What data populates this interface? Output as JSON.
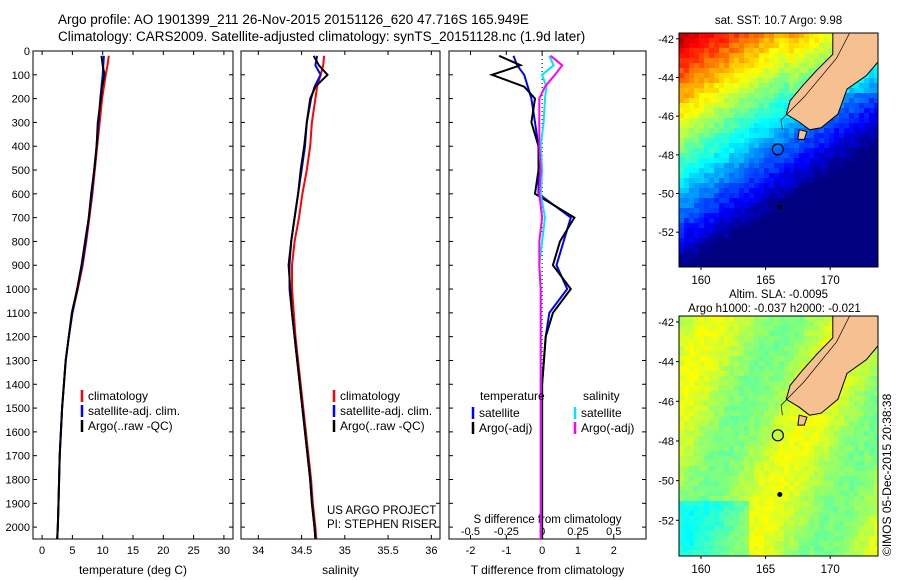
{
  "header": {
    "line1": "Argo profile: AO 1901399_211 26-Nov-2015 20151126_620 47.716S 165.949E",
    "line2": "Climatology: CARS2009. Satellite-adjusted climatology: synTS_20151128.nc (1.9d later)"
  },
  "footer_vertical": "©IMOS 05-Dec-2015 20:38:38",
  "colors": {
    "climatology": "#ff0000",
    "satellite": "#0000ff",
    "argo": "#000000",
    "sal_satellite": "#00e5ff",
    "sal_argo": "#ff00ff"
  },
  "depth_axis": {
    "ticks": [
      0,
      100,
      200,
      300,
      400,
      500,
      600,
      700,
      800,
      900,
      1000,
      1100,
      1200,
      1300,
      1400,
      1500,
      1600,
      1700,
      1800,
      1900,
      2000
    ],
    "range": [
      0,
      2050
    ]
  },
  "chart_data": [
    {
      "type": "line",
      "xlabel": "temperature (deg C)",
      "xlim": [
        -1.5,
        31.5
      ],
      "xticks": [
        0,
        5,
        10,
        15,
        20,
        25,
        30
      ],
      "yaxis": "depth (dbar), inverted",
      "legend": {
        "placement": "lower-center",
        "entries": [
          "climatology",
          "satellite-adj. clim.",
          "Argo(..raw -QC)"
        ]
      },
      "series": [
        {
          "name": "climatology",
          "color": "red",
          "depth": [
            20,
            60,
            100,
            150,
            200,
            300,
            400,
            500,
            600,
            700,
            800,
            900,
            1000,
            1100,
            1200,
            1300,
            1400,
            1500,
            1600,
            1700,
            1800,
            1900,
            2000,
            2050
          ],
          "values": [
            11.0,
            10.8,
            10.5,
            10.2,
            9.9,
            9.5,
            9.1,
            8.7,
            8.3,
            7.8,
            7.3,
            6.7,
            5.9,
            5.0,
            4.4,
            3.9,
            3.6,
            3.3,
            3.1,
            2.9,
            2.8,
            2.7,
            2.6,
            2.5
          ]
        },
        {
          "name": "satellite-adj. clim.",
          "color": "blue",
          "depth": [
            20,
            60,
            100,
            150,
            200,
            300,
            400,
            500,
            600,
            700,
            800,
            900,
            1000,
            1100,
            1200,
            1300,
            1400,
            1500,
            1600,
            1700,
            1800,
            1900,
            2000,
            2050
          ],
          "values": [
            10.2,
            10.1,
            10.0,
            9.8,
            9.6,
            9.3,
            9.0,
            8.6,
            8.2,
            7.7,
            7.2,
            6.6,
            5.8,
            5.0,
            4.4,
            3.9,
            3.6,
            3.3,
            3.1,
            2.9,
            2.8,
            2.7,
            2.6,
            2.5
          ]
        },
        {
          "name": "Argo(..raw -QC)",
          "color": "black",
          "depth": [
            20,
            60,
            100,
            150,
            200,
            300,
            400,
            500,
            600,
            700,
            800,
            900,
            1000,
            1100,
            1200,
            1300,
            1400,
            1500,
            1600,
            1700,
            1800,
            1900,
            2000,
            2050
          ],
          "values": [
            9.8,
            10.0,
            10.3,
            9.9,
            9.7,
            9.2,
            9.0,
            8.6,
            8.1,
            7.7,
            7.1,
            6.5,
            5.8,
            4.9,
            4.4,
            3.9,
            3.6,
            3.3,
            3.1,
            2.9,
            2.8,
            2.7,
            2.6,
            2.5
          ]
        }
      ]
    },
    {
      "type": "line",
      "xlabel": "salinity",
      "xlim": [
        33.8,
        36.1
      ],
      "xticks": [
        34,
        34.5,
        35,
        35.5,
        36
      ],
      "xticklabels": [
        "34",
        "34.5",
        "35",
        "35.5",
        "36"
      ],
      "legend": {
        "placement": "lower-right",
        "entries": [
          "climatology",
          "satellite-adj. clim.",
          "Argo(..raw -QC)"
        ]
      },
      "annotation": [
        "US ARGO PROJECT",
        "PI: STEPHEN RISER"
      ],
      "series": [
        {
          "name": "climatology",
          "color": "red",
          "depth": [
            20,
            60,
            100,
            150,
            200,
            300,
            400,
            500,
            600,
            700,
            800,
            900,
            1000,
            1100,
            1200,
            1300,
            1400,
            1500,
            1600,
            1700,
            1800,
            1900,
            2000,
            2050
          ],
          "values": [
            34.76,
            34.75,
            34.72,
            34.68,
            34.66,
            34.62,
            34.6,
            34.56,
            34.51,
            34.47,
            34.42,
            34.39,
            34.39,
            34.41,
            34.43,
            34.46,
            34.49,
            34.52,
            34.55,
            34.58,
            34.61,
            34.63,
            34.66,
            34.67
          ]
        },
        {
          "name": "satellite-adj. clim.",
          "color": "blue",
          "depth": [
            20,
            60,
            100,
            150,
            200,
            300,
            400,
            500,
            600,
            700,
            800,
            900,
            1000,
            1100,
            1200,
            1300,
            1400,
            1500,
            1600,
            1700,
            1800,
            1900,
            2000,
            2050
          ],
          "values": [
            34.68,
            34.66,
            34.72,
            34.65,
            34.61,
            34.56,
            34.54,
            34.5,
            34.46,
            34.42,
            34.38,
            34.36,
            34.36,
            34.39,
            34.42,
            34.45,
            34.48,
            34.51,
            34.54,
            34.57,
            34.6,
            34.62,
            34.65,
            34.66
          ]
        },
        {
          "name": "Argo(..raw -QC)",
          "color": "black",
          "depth": [
            20,
            60,
            100,
            150,
            200,
            300,
            400,
            500,
            600,
            700,
            800,
            900,
            1000,
            1100,
            1200,
            1300,
            1400,
            1500,
            1600,
            1700,
            1800,
            1900,
            2000,
            2050
          ],
          "values": [
            34.64,
            34.7,
            34.8,
            34.66,
            34.6,
            34.56,
            34.53,
            34.49,
            34.46,
            34.42,
            34.38,
            34.35,
            34.37,
            34.39,
            34.42,
            34.45,
            34.48,
            34.51,
            34.54,
            34.57,
            34.6,
            34.62,
            34.65,
            34.66
          ]
        }
      ]
    },
    {
      "type": "line",
      "xlabel": "T difference from climatology",
      "xlabel_top": "S difference from climatology",
      "xlim": [
        -2.6,
        2.9
      ],
      "xticks": [
        -2,
        -1,
        0,
        1,
        2
      ],
      "top_ticks": [
        -0.5,
        -0.25,
        0,
        0.25,
        0.5
      ],
      "top_ticklabels": [
        "-0.5",
        "-0.25",
        "0",
        "0.25",
        "0.5"
      ],
      "legend": {
        "placement": "lower-center",
        "groups": [
          {
            "title": "temperature",
            "entries": [
              "satellite",
              "Argo(-adj)"
            ]
          },
          {
            "title": "salinity",
            "entries": [
              "satellite",
              "Argo(-adj)"
            ]
          }
        ]
      },
      "series": [
        {
          "name": "temperature satellite",
          "color": "blue",
          "depth": [
            20,
            60,
            100,
            150,
            200,
            300,
            400,
            500,
            600,
            700,
            800,
            900,
            1000,
            1100,
            1200,
            1300,
            1400,
            1500,
            1600,
            1700,
            1800,
            1900,
            2000,
            2050
          ],
          "values": [
            -0.8,
            -0.7,
            -0.5,
            -0.4,
            -0.3,
            -0.2,
            -0.1,
            -0.1,
            -0.1,
            0.8,
            0.6,
            0.4,
            0.7,
            0.2,
            0.1,
            0.05,
            0.0,
            0.0,
            0.0,
            0.0,
            0.0,
            0.0,
            0.0,
            0.0
          ]
        },
        {
          "name": "temperature Argo(-adj)",
          "color": "black",
          "depth": [
            20,
            60,
            100,
            150,
            200,
            300,
            400,
            500,
            600,
            700,
            800,
            900,
            1000,
            1100,
            1200,
            1300,
            1400,
            1500,
            1600,
            1700,
            1800,
            1900,
            2000,
            2050
          ],
          "values": [
            -1.2,
            -0.6,
            -1.4,
            -0.5,
            -0.2,
            -0.3,
            -0.1,
            -0.1,
            -0.2,
            0.9,
            0.5,
            0.3,
            0.8,
            0.3,
            0.1,
            0.05,
            0.0,
            0.0,
            0.0,
            0.0,
            0.0,
            0.0,
            0.0,
            0.0
          ]
        },
        {
          "name": "salinity satellite",
          "color": "cyan",
          "depth": [
            20,
            60,
            100,
            150,
            200,
            300,
            400,
            500,
            600,
            700,
            800,
            900,
            1000,
            1100,
            1200,
            1300,
            1400,
            1500,
            1600,
            1700,
            1800,
            1900,
            2000,
            2050
          ],
          "values": [
            0.05,
            0.08,
            0.0,
            0.03,
            0.02,
            0.01,
            -0.01,
            0.0,
            -0.01,
            0.02,
            0.0,
            -0.02,
            -0.01,
            -0.01,
            -0.01,
            -0.01,
            -0.01,
            -0.01,
            -0.01,
            -0.01,
            -0.01,
            -0.01,
            -0.01,
            -0.01
          ]
        },
        {
          "name": "salinity Argo(-adj)",
          "color": "magenta",
          "depth": [
            20,
            60,
            100,
            150,
            200,
            300,
            400,
            500,
            600,
            700,
            800,
            900,
            1000,
            1100,
            1200,
            1300,
            1400,
            1500,
            1600,
            1700,
            1800,
            1900,
            2000,
            2050
          ],
          "values": [
            0.06,
            0.14,
            0.09,
            0.02,
            -0.02,
            -0.02,
            -0.02,
            -0.01,
            -0.02,
            0.0,
            -0.02,
            -0.02,
            -0.01,
            -0.01,
            -0.01,
            -0.01,
            -0.01,
            -0.01,
            -0.01,
            -0.01,
            -0.01,
            -0.01,
            -0.01,
            -0.01
          ]
        }
      ]
    },
    {
      "type": "heatmap",
      "title": "sat. SST: 10.7 Argo: 9.98",
      "xlim": [
        158.3,
        173.7
      ],
      "ylim": [
        -53.8,
        -41.7
      ],
      "xticks": [
        160,
        165,
        170
      ],
      "yticks": [
        -42,
        -44,
        -46,
        -48,
        -50,
        -52
      ],
      "field": "sea surface temperature",
      "colormap": "jet",
      "marker": {
        "lon": 165.949,
        "lat": -47.716
      }
    },
    {
      "type": "heatmap",
      "title": "Altim. SLA: -0.0095",
      "subtitle": "Argo h1000: -0.037 h2000: -0.021",
      "xlim": [
        158.3,
        173.7
      ],
      "ylim": [
        -53.8,
        -41.7
      ],
      "xticks": [
        160,
        165,
        170
      ],
      "yticks": [
        -42,
        -44,
        -46,
        -48,
        -50,
        -52
      ],
      "field": "sea level anomaly",
      "colormap": "jet",
      "marker": {
        "lon": 165.949,
        "lat": -47.716
      }
    }
  ]
}
